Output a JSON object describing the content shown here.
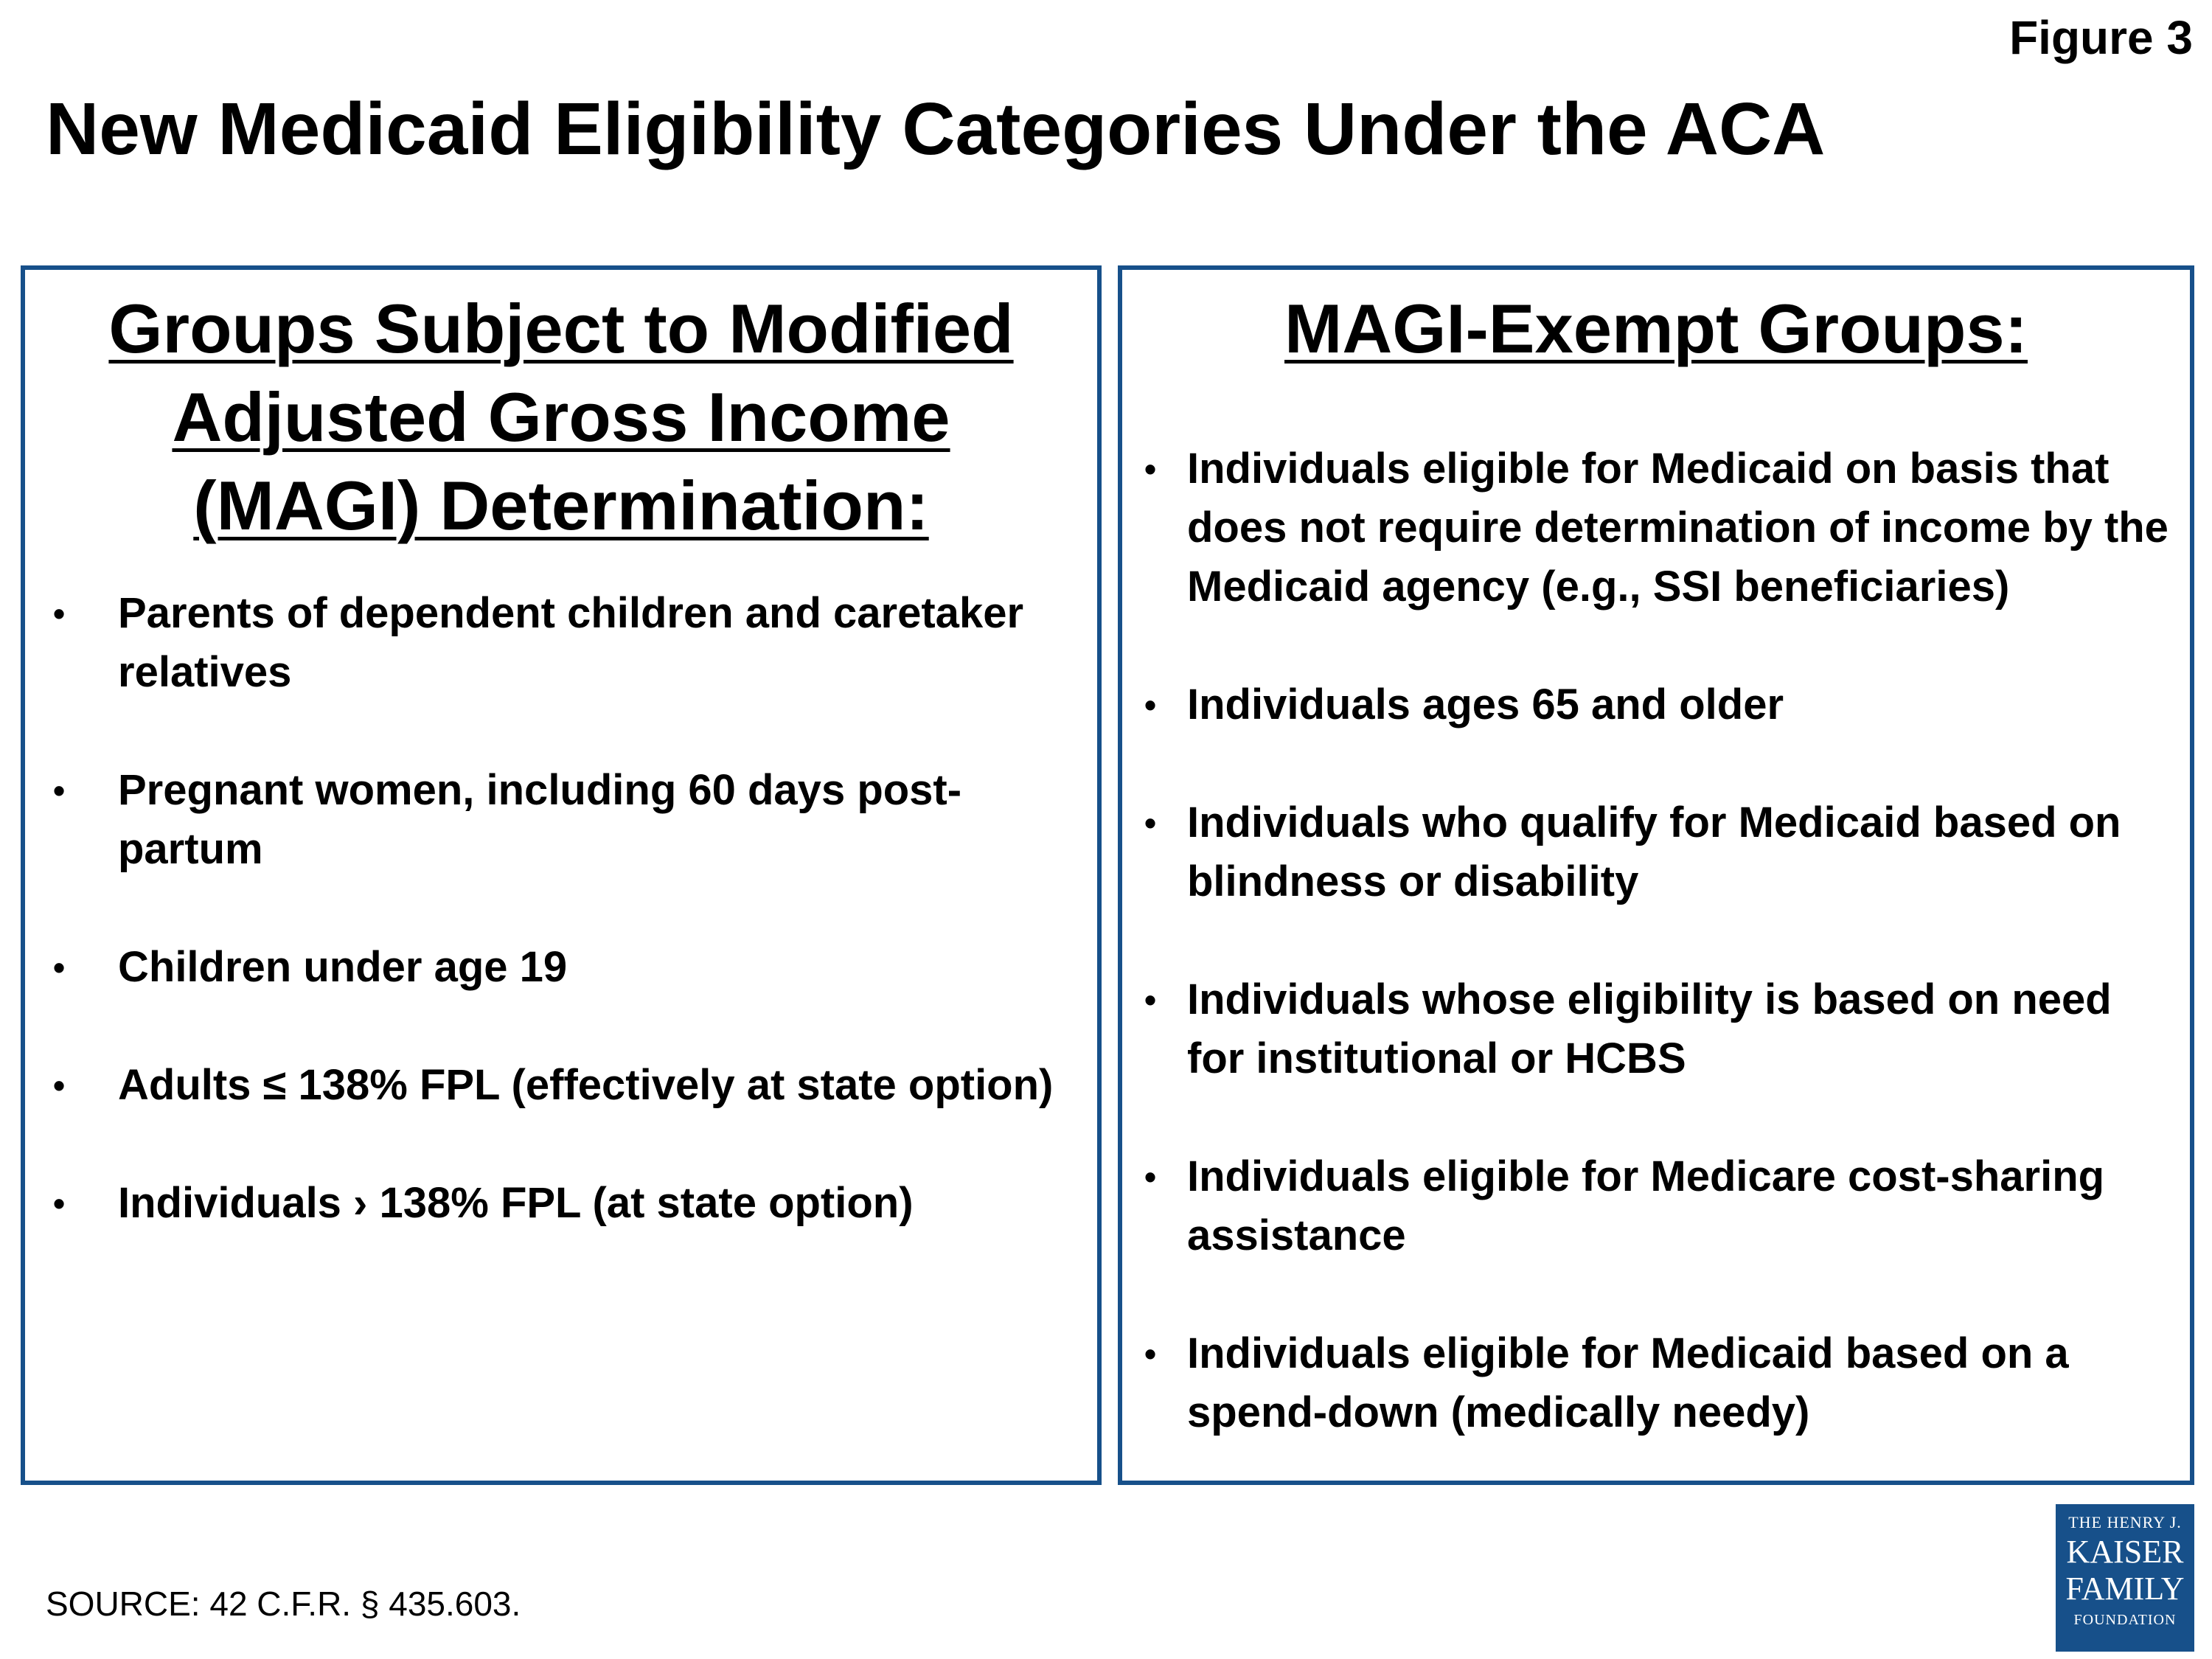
{
  "figure_label": "Figure 3",
  "title": "New Medicaid Eligibility Categories Under the ACA",
  "left_panel": {
    "heading": "Groups Subject to Modified Adjusted Gross Income (MAGI) Determination:",
    "bullet": "•",
    "items": [
      "Parents of dependent children and caretaker relatives",
      "Pregnant women, including 60 days post-partum",
      "Children under age 19",
      "Adults ≤ 138% FPL (effectively at state option)",
      "Individuals › 138% FPL (at state option)"
    ]
  },
  "right_panel": {
    "heading": "MAGI-Exempt Groups:",
    "bullet": "•",
    "items": [
      "Individuals eligible for Medicaid on basis that does not require determination of income by the Medicaid agency (e.g., SSI beneficiaries)",
      "Individuals ages 65 and older",
      "Individuals who qualify for Medicaid based on blindness or disability",
      "Individuals whose eligibility is based on need for institutional or HCBS",
      "Individuals eligible for Medicare cost-sharing assistance",
      "Individuals eligible for Medicaid based on a spend-down (medically needy)"
    ]
  },
  "source": "SOURCE:  42 C.F.R. § 435.603.",
  "logo": {
    "line1": "THE HENRY J.",
    "line2": "KAISER",
    "line3": "FAMILY",
    "line4": "FOUNDATION"
  },
  "colors": {
    "panel_border": "#17508a",
    "logo_background": "#17508a"
  }
}
